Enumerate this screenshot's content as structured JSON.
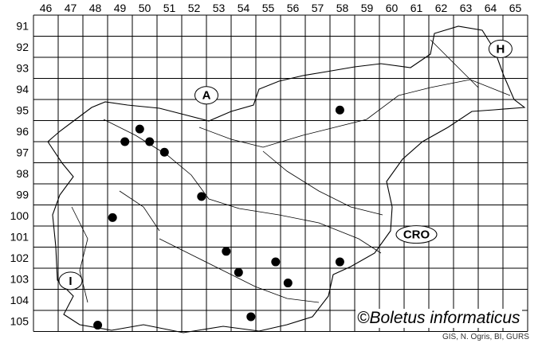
{
  "map": {
    "column_labels": [
      "46",
      "47",
      "48",
      "49",
      "50",
      "51",
      "52",
      "53",
      "54",
      "55",
      "56",
      "57",
      "58",
      "59",
      "60",
      "61",
      "62",
      "63",
      "64",
      "65"
    ],
    "row_labels": [
      "91",
      "92",
      "93",
      "94",
      "95",
      "96",
      "97",
      "98",
      "99",
      "100",
      "101",
      "102",
      "103",
      "104",
      "105"
    ],
    "country_labels": [
      {
        "text": "A",
        "col": 52.5,
        "row": 94.3
      },
      {
        "text": "H",
        "col": 64.4,
        "row": 92.1
      },
      {
        "text": "CRO",
        "col": 61.0,
        "row": 100.9
      },
      {
        "text": "I",
        "col": 47.0,
        "row": 103.1
      }
    ],
    "records": [
      {
        "col": 57.9,
        "row": 95.0
      },
      {
        "col": 49.8,
        "row": 95.9
      },
      {
        "col": 49.2,
        "row": 96.5
      },
      {
        "col": 50.2,
        "row": 96.5
      },
      {
        "col": 50.8,
        "row": 97.0
      },
      {
        "col": 52.3,
        "row": 99.1
      },
      {
        "col": 48.7,
        "row": 100.1
      },
      {
        "col": 53.3,
        "row": 101.7
      },
      {
        "col": 55.3,
        "row": 102.2
      },
      {
        "col": 57.9,
        "row": 102.2
      },
      {
        "col": 53.8,
        "row": 102.7
      },
      {
        "col": 55.8,
        "row": 103.2
      },
      {
        "col": 54.3,
        "row": 104.8
      },
      {
        "col": 48.1,
        "row": 105.2
      }
    ],
    "record_color": "#000000",
    "copyright": "©Boletus informaticus",
    "credit": "GIS, N. Ogris, BI, GURS"
  }
}
